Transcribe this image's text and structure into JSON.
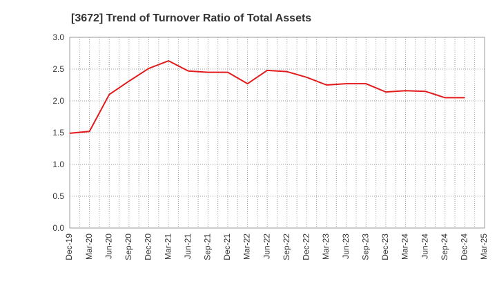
{
  "chart_data": {
    "type": "line",
    "title": "[3672]  Trend of Turnover Ratio of Total Assets",
    "xlabel": "",
    "ylabel": "",
    "x_tick_labels": [
      "Dec-19",
      "Mar-20",
      "Jun-20",
      "Sep-20",
      "Dec-20",
      "Mar-21",
      "Jun-21",
      "Sep-21",
      "Dec-21",
      "Mar-22",
      "Jun-22",
      "Sep-22",
      "Dec-22",
      "Mar-23",
      "Jun-23",
      "Sep-23",
      "Dec-23",
      "Mar-24",
      "Jun-24",
      "Sep-24",
      "Dec-24",
      "Mar-25"
    ],
    "y_tick_labels": [
      "0.0",
      "0.5",
      "1.0",
      "1.5",
      "2.0",
      "2.5",
      "3.0"
    ],
    "ylim": [
      0,
      3.0
    ],
    "grid": true,
    "series": [
      {
        "color": "#e31a1c",
        "x": [
          "Dec-19",
          "Mar-20",
          "Jun-20",
          "Sep-20",
          "Dec-20",
          "Mar-21",
          "Jun-21",
          "Sep-21",
          "Dec-21",
          "Mar-22",
          "Jun-22",
          "Sep-22",
          "Dec-22",
          "Mar-23",
          "Jun-23",
          "Sep-23",
          "Dec-23",
          "Mar-24",
          "Jun-24",
          "Sep-24",
          "Dec-24"
        ],
        "values": [
          1.49,
          1.52,
          2.1,
          2.31,
          2.51,
          2.63,
          2.47,
          2.45,
          2.45,
          2.27,
          2.48,
          2.46,
          2.37,
          2.25,
          2.27,
          2.27,
          2.14,
          2.16,
          2.15,
          2.05,
          2.05
        ]
      }
    ]
  }
}
